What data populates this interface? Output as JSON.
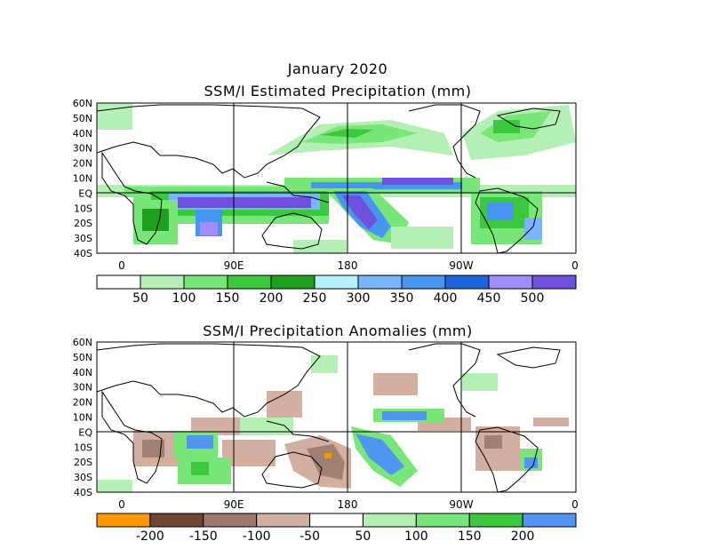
{
  "header": {
    "date": "January 2020",
    "panel1_title": "SSM/I Estimated Precipitation (mm)",
    "panel2_title": "SSM/I Precipitation Anomalies (mm)"
  },
  "lat_labels": [
    "60N",
    "50N",
    "40N",
    "30N",
    "20N",
    "10N",
    "EQ",
    "10S",
    "20S",
    "30S",
    "40S"
  ],
  "lon_labels": [
    "0",
    "90E",
    "180",
    "90W",
    "0"
  ],
  "colorbar1": {
    "colors": [
      "#ffffff",
      "#b4f0b4",
      "#78e678",
      "#3cc83c",
      "#1ea01e",
      "#b4f0ff",
      "#78b4ff",
      "#4696f0",
      "#1e64dc",
      "#a08cff",
      "#6e50dc"
    ],
    "labels": [
      "50",
      "100",
      "150",
      "200",
      "250",
      "300",
      "350",
      "400",
      "450",
      "500"
    ]
  },
  "colorbar2": {
    "colors": [
      "#ff9600",
      "#6e4632",
      "#a0786e",
      "#d2afa0",
      "#ffffff",
      "#b4f0b4",
      "#78e678",
      "#3cc83c",
      "#5096f0"
    ],
    "labels": [
      "-200",
      "-150",
      "-100",
      "-50",
      "50",
      "100",
      "150",
      "200"
    ]
  },
  "colors": {
    "land_outline": "#000000",
    "grid": "#000000"
  }
}
